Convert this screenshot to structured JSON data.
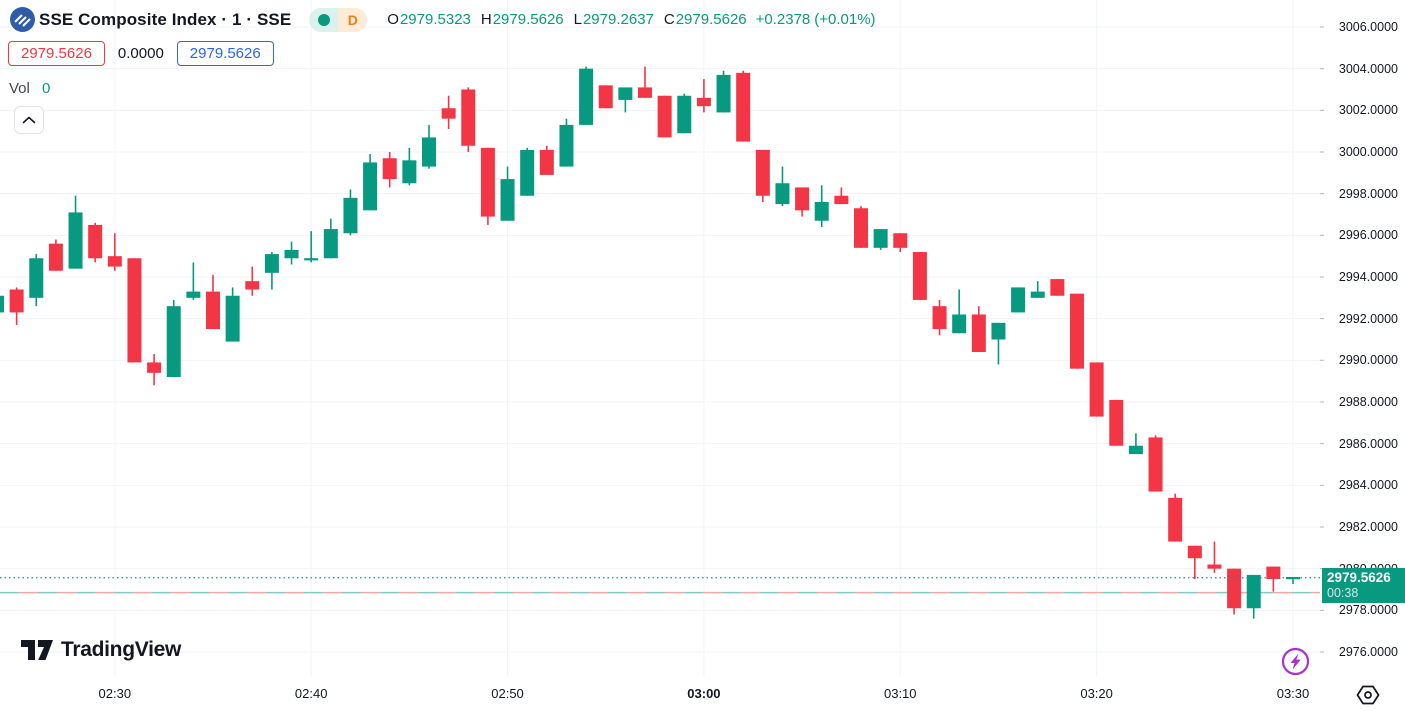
{
  "colors": {
    "up": "#089981",
    "down": "#F23645",
    "buy_blue": "#2962FF",
    "sell_red": "#F23645",
    "delayed_orange": "#F07E17",
    "symbol_logo_blue": "#2F5CA8",
    "lightning_purple": "#A733C9",
    "prev_close_dash_red": "#F7A6A5",
    "prev_close_dash_teal": "#80CCC3",
    "grid": "#F0F3FA",
    "text_dark": "#131722",
    "current_price_label_bg": "#089981"
  },
  "header": {
    "symbol_title": "SSE Composite Index · 1 · SSE",
    "market_status_dot": "market-open",
    "delayed_badge": "D",
    "ohlc": {
      "o_label": "O",
      "o_value": "2979.5323",
      "h_label": "H",
      "h_value": "2979.5626",
      "l_label": "L",
      "l_value": "2979.2637",
      "c_label": "C",
      "c_value": "2979.5626",
      "change": "+0.2378",
      "change_pct": "(+0.01%)"
    }
  },
  "quote_row": {
    "sell_price": "2979.5626",
    "spread": "0.0000",
    "buy_price": "2979.5626"
  },
  "volume_row": {
    "label": "Vol",
    "value": "0"
  },
  "price_scale": {
    "ticks": [
      "3006.0000",
      "3004.0000",
      "3002.0000",
      "3000.0000",
      "2998.0000",
      "2996.0000",
      "2994.0000",
      "2992.0000",
      "2990.0000",
      "2988.0000",
      "2986.0000",
      "2984.0000",
      "2982.0000",
      "2980.0000",
      "2978.0000",
      "2976.0000"
    ],
    "current_price_label": {
      "price": "2979.5626",
      "countdown": "00:38"
    }
  },
  "time_scale": {
    "ticks": [
      {
        "label": "02:30",
        "bold": false
      },
      {
        "label": "02:40",
        "bold": false
      },
      {
        "label": "02:50",
        "bold": false
      },
      {
        "label": "03:00",
        "bold": true
      },
      {
        "label": "03:10",
        "bold": false
      },
      {
        "label": "03:20",
        "bold": false
      },
      {
        "label": "03:30",
        "bold": false
      }
    ]
  },
  "chart_data": {
    "type": "candlestick",
    "title": "SSE Composite Index, 1 minute",
    "y_axis": {
      "min": 2976,
      "max": 3006,
      "tick_step": 2,
      "grid": true
    },
    "x_axis": {
      "minutes_per_candle": 1,
      "first_time": "02:24",
      "last_time": "03:30"
    },
    "current_price": 2979.5626,
    "previous_close": 2978.85,
    "columns": [
      "time",
      "open",
      "high",
      "low",
      "close"
    ],
    "candles": [
      [
        "02:24",
        2992.3,
        2993.2,
        2992.2,
        2993.1
      ],
      [
        "02:25",
        2993.4,
        2993.5,
        2991.7,
        2992.3
      ],
      [
        "02:26",
        2993.0,
        2995.1,
        2992.6,
        2994.9
      ],
      [
        "02:27",
        2995.6,
        2995.8,
        2994.3,
        2994.3
      ],
      [
        "02:28",
        2994.4,
        2997.9,
        2994.4,
        2997.1
      ],
      [
        "02:29",
        2996.5,
        2996.6,
        2994.7,
        2994.9
      ],
      [
        "02:30",
        2995.0,
        2996.1,
        2994.3,
        2994.5
      ],
      [
        "02:31",
        2994.9,
        2994.9,
        2989.9,
        2989.9
      ],
      [
        "02:32",
        2989.9,
        2990.3,
        2988.8,
        2989.4
      ],
      [
        "02:33",
        2989.2,
        2992.9,
        2989.2,
        2992.6
      ],
      [
        "02:34",
        2993.0,
        2994.7,
        2992.9,
        2993.3
      ],
      [
        "02:35",
        2993.3,
        2994.1,
        2991.5,
        2991.5
      ],
      [
        "02:36",
        2990.9,
        2993.5,
        2990.9,
        2993.1
      ],
      [
        "02:37",
        2993.8,
        2994.5,
        2993.1,
        2993.4
      ],
      [
        "02:38",
        2994.2,
        2995.2,
        2993.4,
        2995.1
      ],
      [
        "02:39",
        2994.9,
        2995.7,
        2994.6,
        2995.3
      ],
      [
        "02:40",
        2994.8,
        2996.2,
        2994.7,
        2994.9
      ],
      [
        "02:41",
        2994.9,
        2996.8,
        2994.9,
        2996.3
      ],
      [
        "02:42",
        2996.1,
        2998.2,
        2996.0,
        2997.8
      ],
      [
        "02:43",
        2997.2,
        2999.9,
        2997.2,
        2999.5
      ],
      [
        "02:44",
        2999.7,
        3000.0,
        2998.3,
        2998.7
      ],
      [
        "02:45",
        2998.5,
        3000.2,
        2998.4,
        2999.6
      ],
      [
        "02:46",
        2999.3,
        3001.3,
        2999.2,
        3000.7
      ],
      [
        "02:47",
        3002.1,
        3002.7,
        3001.1,
        3001.6
      ],
      [
        "02:48",
        3003.0,
        3003.1,
        3000.0,
        3000.3
      ],
      [
        "02:49",
        3000.2,
        3000.2,
        2996.5,
        2996.9
      ],
      [
        "02:50",
        2996.7,
        2999.3,
        2996.7,
        2998.7
      ],
      [
        "02:51",
        2997.9,
        3000.2,
        2997.9,
        3000.1
      ],
      [
        "02:52",
        3000.1,
        3000.3,
        2998.9,
        2998.9
      ],
      [
        "02:53",
        2999.3,
        3001.6,
        2999.3,
        3001.3
      ],
      [
        "02:54",
        3001.3,
        3004.1,
        3001.3,
        3004.0
      ],
      [
        "02:55",
        3003.2,
        3003.2,
        3002.1,
        3002.1
      ],
      [
        "02:56",
        3002.5,
        3003.1,
        3001.9,
        3003.1
      ],
      [
        "02:57",
        3003.1,
        3004.1,
        3002.6,
        3002.6
      ],
      [
        "02:58",
        3002.7,
        3002.7,
        3000.7,
        3000.7
      ],
      [
        "02:59",
        3000.9,
        3002.8,
        3000.9,
        3002.7
      ],
      [
        "03:00",
        3002.6,
        3003.5,
        3001.9,
        3002.2
      ],
      [
        "03:01",
        3001.9,
        3003.9,
        3001.9,
        3003.7
      ],
      [
        "03:02",
        3003.8,
        3003.9,
        3000.5,
        3000.5
      ],
      [
        "03:03",
        3000.1,
        3000.1,
        2997.6,
        2997.9
      ],
      [
        "03:04",
        2997.5,
        2999.3,
        2997.4,
        2998.5
      ],
      [
        "03:05",
        2998.3,
        2998.3,
        2996.9,
        2997.2
      ],
      [
        "03:06",
        2996.7,
        2998.4,
        2996.4,
        2997.6
      ],
      [
        "03:07",
        2997.9,
        2998.3,
        2997.5,
        2997.5
      ],
      [
        "03:08",
        2997.3,
        2997.4,
        2995.4,
        2995.4
      ],
      [
        "03:09",
        2995.4,
        2996.3,
        2995.3,
        2996.3
      ],
      [
        "03:10",
        2996.1,
        2996.1,
        2995.2,
        2995.4
      ],
      [
        "03:11",
        2995.2,
        2995.2,
        2992.9,
        2992.9
      ],
      [
        "03:12",
        2992.6,
        2992.9,
        2991.2,
        2991.5
      ],
      [
        "03:13",
        2991.3,
        2993.4,
        2991.3,
        2992.2
      ],
      [
        "03:14",
        2992.2,
        2992.6,
        2990.4,
        2990.4
      ],
      [
        "03:15",
        2991.0,
        2991.8,
        2989.8,
        2991.8
      ],
      [
        "03:16",
        2992.3,
        2993.5,
        2992.3,
        2993.5
      ],
      [
        "03:17",
        2993.0,
        2993.8,
        2993.0,
        2993.3
      ],
      [
        "03:18",
        2993.9,
        2993.9,
        2993.1,
        2993.1
      ],
      [
        "03:19",
        2993.2,
        2993.2,
        2989.6,
        2989.6
      ],
      [
        "03:20",
        2989.9,
        2989.9,
        2987.3,
        2987.3
      ],
      [
        "03:21",
        2988.1,
        2988.1,
        2985.9,
        2985.9
      ],
      [
        "03:22",
        2985.5,
        2986.5,
        2985.5,
        2985.9
      ],
      [
        "03:23",
        2986.3,
        2986.4,
        2983.7,
        2983.7
      ],
      [
        "03:24",
        2983.4,
        2983.6,
        2981.3,
        2981.3
      ],
      [
        "03:25",
        2981.1,
        2981.1,
        2979.5,
        2980.5
      ],
      [
        "03:26",
        2980.2,
        2981.3,
        2979.8,
        2980.0
      ],
      [
        "03:27",
        2980.0,
        2980.0,
        2977.8,
        2978.1
      ],
      [
        "03:28",
        2978.1,
        2979.7,
        2977.6,
        2979.7
      ],
      [
        "03:29",
        2980.1,
        2980.1,
        2978.9,
        2979.5
      ],
      [
        "03:30",
        2979.5323,
        2979.5626,
        2979.2637,
        2979.5626
      ]
    ]
  },
  "footer": {
    "brand": "TradingView"
  }
}
